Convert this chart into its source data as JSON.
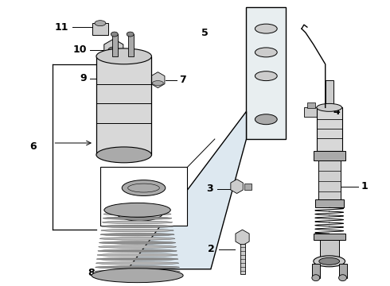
{
  "bg_color": "#ffffff",
  "line_color": "#000000",
  "gray1": "#cccccc",
  "gray2": "#aaaaaa",
  "gray3": "#888888",
  "gray4": "#e8e8e8",
  "gray5": "#d5d5d5",
  "bracket_bg": "#dde8f0"
}
